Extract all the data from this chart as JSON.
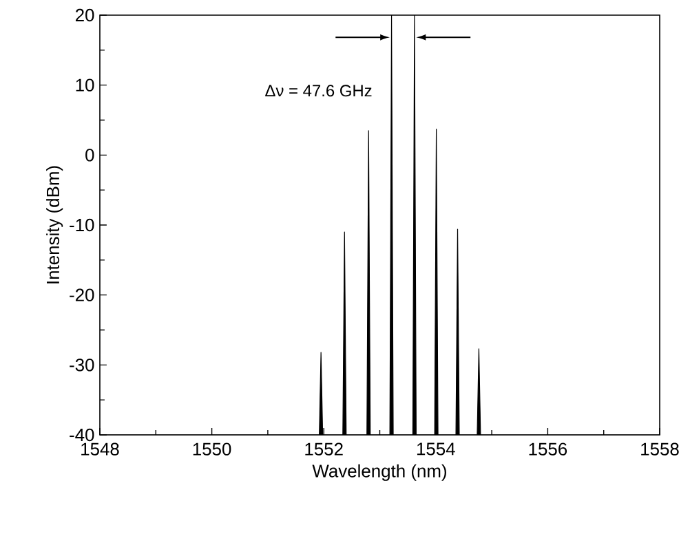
{
  "chart_data": {
    "type": "line",
    "xlabel": "Wavelength (nm)",
    "ylabel": "Intensity (dBm)",
    "xlim": [
      1548,
      1558
    ],
    "ylim": [
      -40,
      20
    ],
    "xticks": [
      1548,
      1550,
      1552,
      1554,
      1556,
      1558
    ],
    "yticks": [
      -40,
      -30,
      -20,
      -10,
      0,
      10,
      20
    ],
    "color": "#000000",
    "x": [
      1548,
      1551.92,
      1551.95,
      1551.98,
      1552.34,
      1552.37,
      1552.4,
      1552.77,
      1552.8,
      1552.83,
      1553.18,
      1553.21,
      1553.24,
      1553.59,
      1553.62,
      1553.65,
      1553.98,
      1554.01,
      1554.04,
      1554.36,
      1554.39,
      1554.42,
      1554.74,
      1554.77,
      1554.8,
      1558
    ],
    "values": [
      -40,
      -40,
      -28.2,
      -40,
      -40,
      -11.0,
      -40,
      -40,
      3.5,
      -40,
      -40,
      20,
      -40,
      -40,
      20,
      -40,
      -40,
      3.7,
      -40,
      -40,
      -10.6,
      -40,
      -40,
      -27.7,
      -40,
      -40
    ],
    "annotations": [
      "Δν = 47.6 GHz"
    ]
  }
}
